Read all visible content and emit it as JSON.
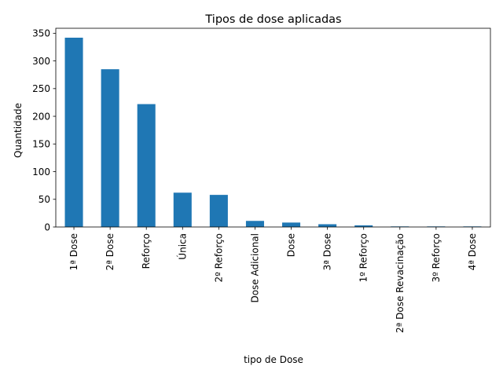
{
  "chart_data": {
    "type": "bar",
    "title": "Tipos de dose aplicadas",
    "xlabel": "tipo de Dose",
    "ylabel": "Quantidade",
    "categories": [
      "1ª Dose",
      "2ª Dose",
      "Reforço",
      "Única",
      "2º Reforço",
      "Dose Adicional",
      "Dose",
      "3ª Dose",
      "1º Reforço",
      "2ª Dose Revacinação",
      "3º Reforço",
      "4ª Dose"
    ],
    "values": [
      342,
      285,
      222,
      62,
      58,
      11,
      8,
      5,
      3,
      1,
      1,
      1
    ],
    "yticks": [
      0,
      50,
      100,
      150,
      200,
      250,
      300,
      350
    ],
    "ylim": [
      0,
      359
    ],
    "grid": false,
    "legend": "none",
    "bar_color": "#1f77b4"
  }
}
